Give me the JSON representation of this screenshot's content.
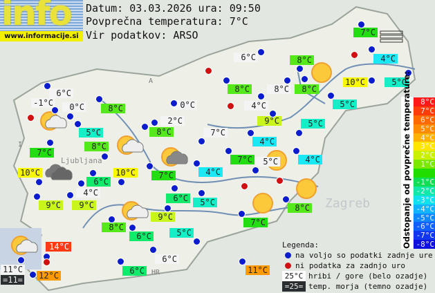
{
  "header": {
    "logo_text": "info",
    "logo_url": "www.informacije.si",
    "date_line": "Datum: 03.03.2026 ura: 09:50",
    "avg_line": "Povprečna temperatura: 7°C",
    "source_line": "Vir podatkov: ARSO"
  },
  "map_labels": {
    "country_a": "A",
    "country_i": "I",
    "country_hr": "HR",
    "city_ljubljana": "Ljubljana",
    "city_zagreb": "Zagreb"
  },
  "colors": {
    "white": "#f4f4f4",
    "green8": "#55e81a",
    "green7": "#22dd11",
    "green6": "#11ea6a",
    "teal5": "#16eec8",
    "cyan4": "#1ae8f5",
    "yg9": "#c8f61a",
    "yellow10": "#f8f800",
    "orange": "#ff9a00",
    "red14": "#ff3a12",
    "sea": "#2a2e30",
    "dot_blue": "#0a1ccc",
    "dot_red": "#d01010"
  },
  "stations": [
    {
      "t": "7°C",
      "c": "green7"
    },
    {
      "t": "6°C",
      "c": "white"
    },
    {
      "t": "8°C",
      "c": "green8"
    },
    {
      "t": "4°C",
      "c": "cyan4"
    },
    {
      "t": "10°C",
      "c": "yellow10"
    },
    {
      "t": "5°C",
      "c": "teal5"
    },
    {
      "t": "6°C",
      "c": "white"
    },
    {
      "t": "-1°C",
      "c": "white"
    },
    {
      "t": "0°C",
      "c": "white"
    },
    {
      "t": "8°C",
      "c": "green8"
    },
    {
      "t": "0°C",
      "c": "white"
    },
    {
      "t": "8°C",
      "c": "green8"
    },
    {
      "t": "8°C",
      "c": "white"
    },
    {
      "t": "8°C",
      "c": "green8"
    },
    {
      "t": "4°C",
      "c": "white"
    },
    {
      "t": "5°C",
      "c": "teal5"
    },
    {
      "t": "9°C",
      "c": "yg9"
    },
    {
      "t": "5°C",
      "c": "teal5"
    },
    {
      "t": "2°C",
      "c": "white"
    },
    {
      "t": "8°C",
      "c": "green8"
    },
    {
      "t": "7°C",
      "c": "white"
    },
    {
      "t": "5°C",
      "c": "teal5"
    },
    {
      "t": "8°C",
      "c": "green8"
    },
    {
      "t": "4°C",
      "c": "cyan4"
    },
    {
      "t": "7°C",
      "c": "green7"
    },
    {
      "t": "7°C",
      "c": "green7"
    },
    {
      "t": "5°C",
      "c": "white"
    },
    {
      "t": "4°C",
      "c": "cyan4"
    },
    {
      "t": "10°C",
      "c": "yellow10"
    },
    {
      "t": "10°C",
      "c": "yellow10"
    },
    {
      "t": "4°C",
      "c": "cyan4"
    },
    {
      "t": "7°C",
      "c": "green7"
    },
    {
      "t": "6°C",
      "c": "green6"
    },
    {
      "t": "4°C",
      "c": "white"
    },
    {
      "t": "6°C",
      "c": "green6"
    },
    {
      "t": "5°C",
      "c": "teal5"
    },
    {
      "t": "9°C",
      "c": "yg9"
    },
    {
      "t": "9°C",
      "c": "yg9"
    },
    {
      "t": "8°C",
      "c": "green8"
    },
    {
      "t": "9°C",
      "c": "yg9"
    },
    {
      "t": "7°C",
      "c": "green7"
    },
    {
      "t": "8°C",
      "c": "green8"
    },
    {
      "t": "6°C",
      "c": "green6"
    },
    {
      "t": "5°C",
      "c": "teal5"
    },
    {
      "t": "14°C",
      "c": "red14"
    },
    {
      "t": "6°C",
      "c": "white"
    },
    {
      "t": "11°C",
      "c": "white"
    },
    {
      "t": "=11=",
      "c": "sea"
    },
    {
      "t": "12°C",
      "c": "orange"
    },
    {
      "t": "6°C",
      "c": "green6"
    },
    {
      "t": "11°C",
      "c": "orange"
    }
  ],
  "weather_icons": [
    "sun-cloud",
    "sun-cloud",
    "sun-dark-cloud",
    "sun-cloud",
    "sun-cloud",
    "overcast",
    "sun",
    "sun",
    "sun",
    "sun",
    "fog"
  ],
  "scale": {
    "title": "Odstopanje od povprečne temperature:",
    "steps": [
      {
        "t": "8°C",
        "c": "#ff1a1a"
      },
      {
        "t": "7°C",
        "c": "#ff3d0a"
      },
      {
        "t": "6°C",
        "c": "#ff6a00"
      },
      {
        "t": "5°C",
        "c": "#ff8c00"
      },
      {
        "t": "4°C",
        "c": "#ffb300"
      },
      {
        "t": "3°C",
        "c": "#ffe600"
      },
      {
        "t": "2°C",
        "c": "#c8f000"
      },
      {
        "t": "1°C",
        "c": "#7be800"
      },
      {
        "t": "",
        "c": "#22dd00"
      },
      {
        "t": "-1°C",
        "c": "#11dd55"
      },
      {
        "t": "-2°C",
        "c": "#11e8aa"
      },
      {
        "t": "-3°C",
        "c": "#11e0ee"
      },
      {
        "t": "-4°C",
        "c": "#11b4ff"
      },
      {
        "t": "-5°C",
        "c": "#1188ff"
      },
      {
        "t": "-6°C",
        "c": "#1160ff"
      },
      {
        "t": "-7°C",
        "c": "#1138f0"
      },
      {
        "t": "-8°C",
        "c": "#1010dd"
      }
    ]
  },
  "legend": {
    "title": "Legenda:",
    "blue": "na voljo so podatki zadnje ure",
    "red": "ni podatka za zadnjo uro",
    "hill_sample": "25°C",
    "hill": "hribi / gore (belo ozadje)",
    "sea_sample": "=25=",
    "sea": "temp. morja (temno ozadje)"
  }
}
